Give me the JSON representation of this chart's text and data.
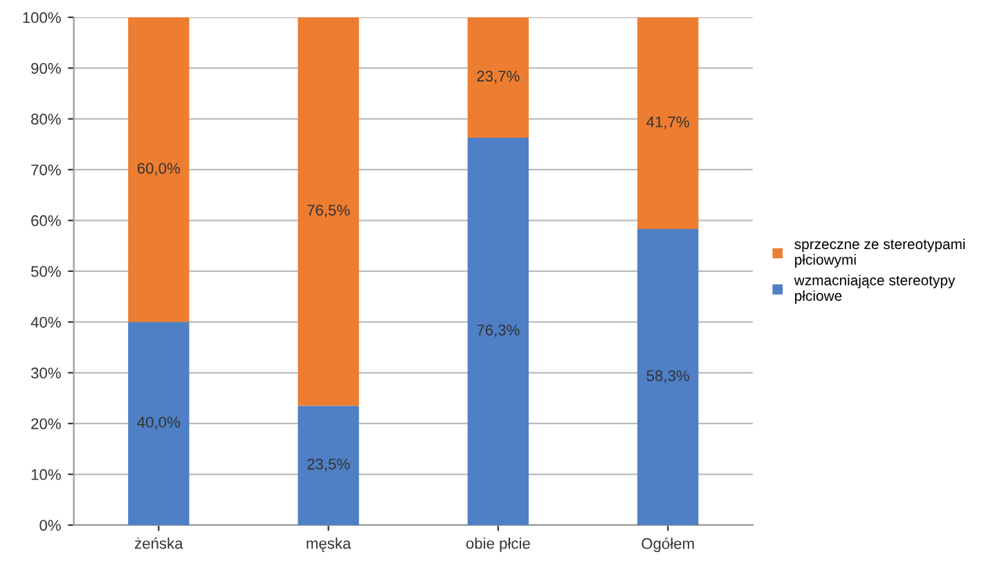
{
  "chart_data": {
    "type": "bar",
    "stacked": true,
    "categories": [
      "żeńska",
      "męska",
      "obie płcie",
      "Ogółem"
    ],
    "series": [
      {
        "name": "wzmacniające stereotypy\npłciowe",
        "color": "#4f7fc4",
        "values": [
          40.0,
          23.5,
          76.3,
          58.3
        ],
        "value_labels": [
          "40,0%",
          "23,5%",
          "76,3%",
          "58,3%"
        ]
      },
      {
        "name": "sprzeczne ze stereotypami\npłciowymi",
        "color": "#ed7d31",
        "values": [
          60.0,
          76.5,
          23.7,
          41.7
        ],
        "value_labels": [
          "60,0%",
          "76,5%",
          "23,7%",
          "41,7%"
        ]
      }
    ],
    "ylim": [
      0,
      100
    ],
    "yticks": [
      {
        "value": 0,
        "label": "0%"
      },
      {
        "value": 10,
        "label": "10%"
      },
      {
        "value": 20,
        "label": "20%"
      },
      {
        "value": 30,
        "label": "30%"
      },
      {
        "value": 40,
        "label": "40%"
      },
      {
        "value": 50,
        "label": "50%"
      },
      {
        "value": 60,
        "label": "60%"
      },
      {
        "value": 70,
        "label": "70%"
      },
      {
        "value": 80,
        "label": "80%"
      },
      {
        "value": 90,
        "label": "90%"
      },
      {
        "value": 100,
        "label": "100%"
      }
    ],
    "grid": "y",
    "legend": "right"
  }
}
